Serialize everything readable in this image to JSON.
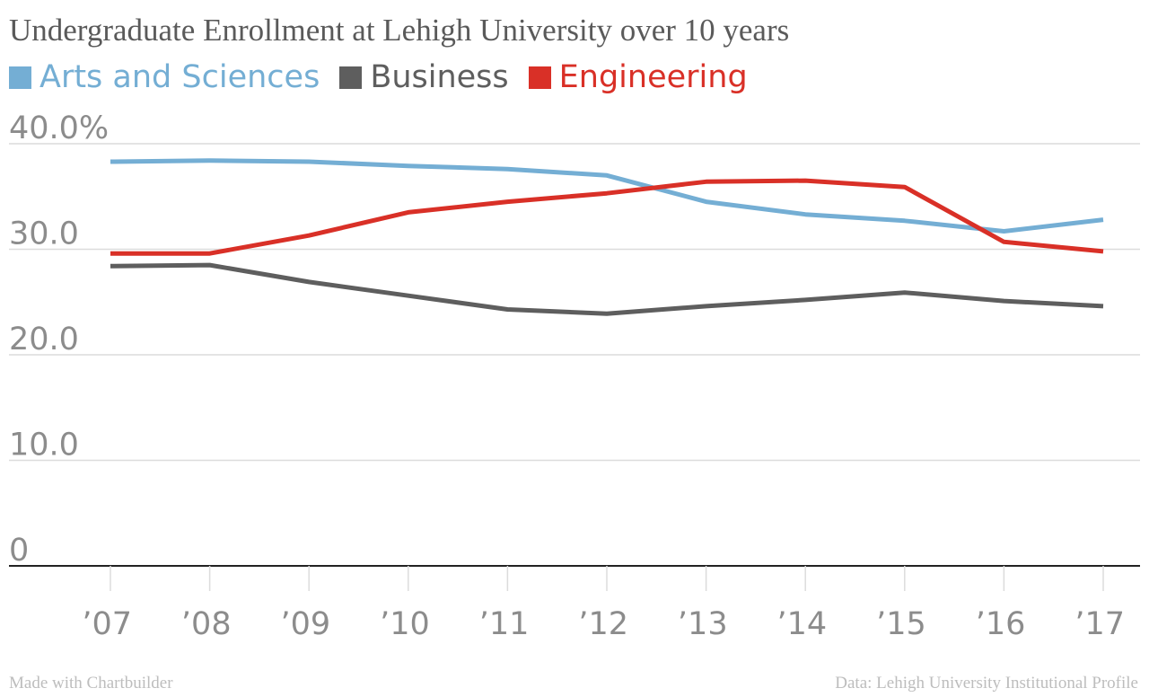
{
  "chart_data": {
    "type": "line",
    "title": "Undergraduate Enrollment at Lehigh University over 10 years",
    "x": [
      "’07",
      "’08",
      "’09",
      "’10",
      "’11",
      "’12",
      "’13",
      "’14",
      "’15",
      "’16",
      "’17"
    ],
    "series": [
      {
        "name": "Arts and Sciences",
        "color": "#74aed4",
        "values": [
          38.3,
          38.4,
          38.3,
          37.9,
          37.6,
          37.0,
          34.5,
          33.3,
          32.7,
          31.7,
          32.8
        ]
      },
      {
        "name": "Business",
        "color": "#5e5e5e",
        "values": [
          28.4,
          28.5,
          26.9,
          25.6,
          24.3,
          23.9,
          24.6,
          25.2,
          25.9,
          25.1,
          24.6
        ]
      },
      {
        "name": "Engineering",
        "color": "#d93027",
        "values": [
          29.6,
          29.6,
          31.3,
          33.5,
          34.5,
          35.3,
          36.4,
          36.5,
          35.9,
          30.7,
          29.8
        ]
      }
    ],
    "yticks": [
      {
        "value": 0,
        "label": "0"
      },
      {
        "value": 10,
        "label": "10.0"
      },
      {
        "value": 20,
        "label": "20.0"
      },
      {
        "value": 30,
        "label": "30.0"
      },
      {
        "value": 40,
        "label": "40.0%"
      }
    ],
    "ylim": [
      0,
      40
    ],
    "grid": true,
    "legend": "top-left",
    "xlabel": "",
    "ylabel": ""
  },
  "footer": {
    "left": "Made with Chartbuilder",
    "right": "Data: Lehigh University Institutional Profile"
  }
}
